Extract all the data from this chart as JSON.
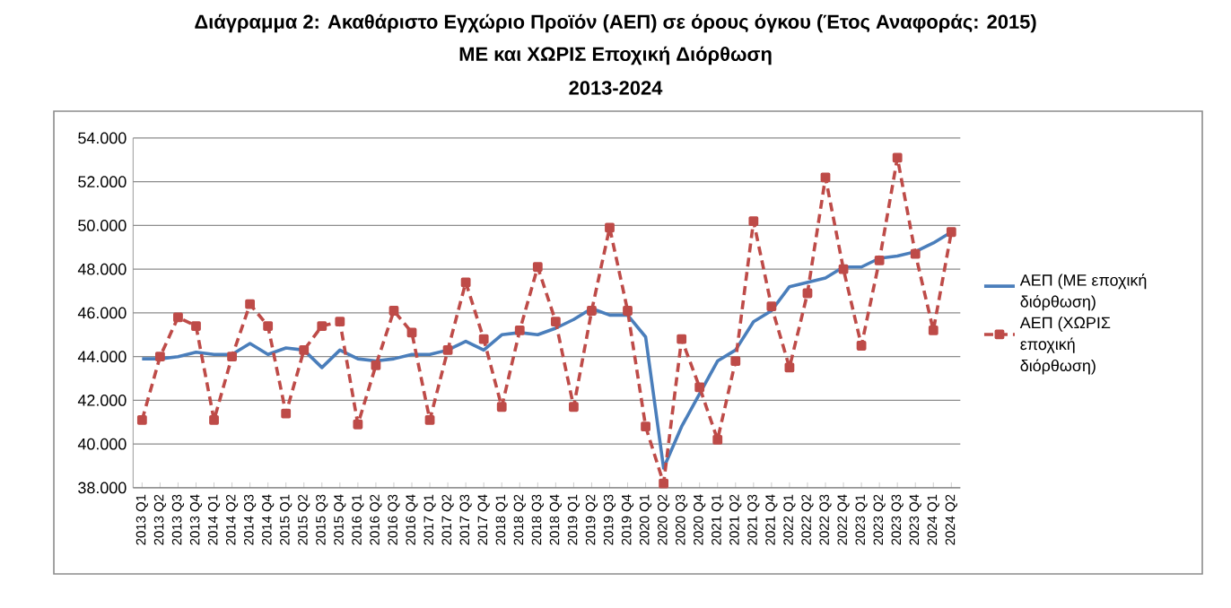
{
  "chart_data": {
    "type": "line",
    "title": "Διάγραμμα 2: Ακαθάριστο Εγχώριο Προϊόν (ΑΕΠ) σε όρους όγκου (Έτος Αναφοράς: 2015)",
    "subtitle": "ΜΕ και ΧΩΡΙΣ Εποχική Διόρθωση",
    "annotations": [
      "2013-2024"
    ],
    "categories": [
      "2013 Q1",
      "2013 Q2",
      "2013 Q3",
      "2013 Q4",
      "2014 Q1",
      "2014 Q2",
      "2014 Q3",
      "2014 Q4",
      "2015 Q1",
      "2015 Q2",
      "2015 Q3",
      "2015 Q4",
      "2016 Q1",
      "2016 Q2",
      "2016 Q3",
      "2016 Q4",
      "2017 Q1",
      "2017 Q2",
      "2017 Q3",
      "2017 Q4",
      "2018 Q1",
      "2018 Q2",
      "2018 Q3",
      "2018 Q4",
      "2019 Q1",
      "2019 Q2",
      "2019 Q3",
      "2019 Q4",
      "2020 Q1",
      "2020 Q2",
      "2020 Q3",
      "2020 Q4",
      "2021 Q1",
      "2021 Q2",
      "2021 Q3",
      "2021 Q4",
      "2022 Q1",
      "2022 Q2",
      "2022 Q3",
      "2022 Q4",
      "2023 Q1",
      "2023 Q2",
      "2023 Q3",
      "2023 Q4",
      "2024 Q1",
      "2024 Q2"
    ],
    "series": [
      {
        "name": "ΑΕΠ (ΜΕ εποχική διόρθωση)",
        "color": "#4a7ebb",
        "marker": "none",
        "line_style": "solid",
        "values": [
          43900,
          43900,
          44000,
          44200,
          44100,
          44100,
          44600,
          44100,
          44400,
          44300,
          43500,
          44300,
          43900,
          43800,
          43900,
          44100,
          44100,
          44300,
          44700,
          44300,
          45000,
          45100,
          45000,
          45300,
          45700,
          46200,
          45900,
          45900,
          44900,
          38900,
          40800,
          42300,
          43800,
          44300,
          45600,
          46100,
          47200,
          47400,
          47600,
          48100,
          48100,
          48500,
          48600,
          48800,
          49200,
          49700
        ]
      },
      {
        "name": "ΑΕΠ (ΧΩΡΙΣ εποχική διόρθωση)",
        "color": "#be4b48",
        "marker": "square",
        "line_style": "dashed",
        "values": [
          41100,
          44000,
          45800,
          45400,
          41100,
          44000,
          46400,
          45400,
          41400,
          44300,
          45400,
          45600,
          40900,
          43600,
          46100,
          45100,
          41100,
          44300,
          47400,
          44800,
          41700,
          45200,
          48100,
          45600,
          41700,
          46100,
          49900,
          46100,
          40800,
          38200,
          44800,
          42600,
          40200,
          43800,
          50200,
          46300,
          43500,
          46900,
          52200,
          48000,
          44500,
          48400,
          53100,
          48700,
          45200,
          49700
        ]
      }
    ],
    "ylim": [
      38000,
      54000
    ],
    "yticks": [
      {
        "value": 38000,
        "label": "38.000"
      },
      {
        "value": 40000,
        "label": "40.000"
      },
      {
        "value": 42000,
        "label": "42.000"
      },
      {
        "value": 44000,
        "label": "44.000"
      },
      {
        "value": 46000,
        "label": "46.000"
      },
      {
        "value": 48000,
        "label": "48.000"
      },
      {
        "value": 50000,
        "label": "50.000"
      },
      {
        "value": 52000,
        "label": "52.000"
      },
      {
        "value": 54000,
        "label": "54.000"
      }
    ],
    "grid": "y",
    "legend": "right"
  }
}
